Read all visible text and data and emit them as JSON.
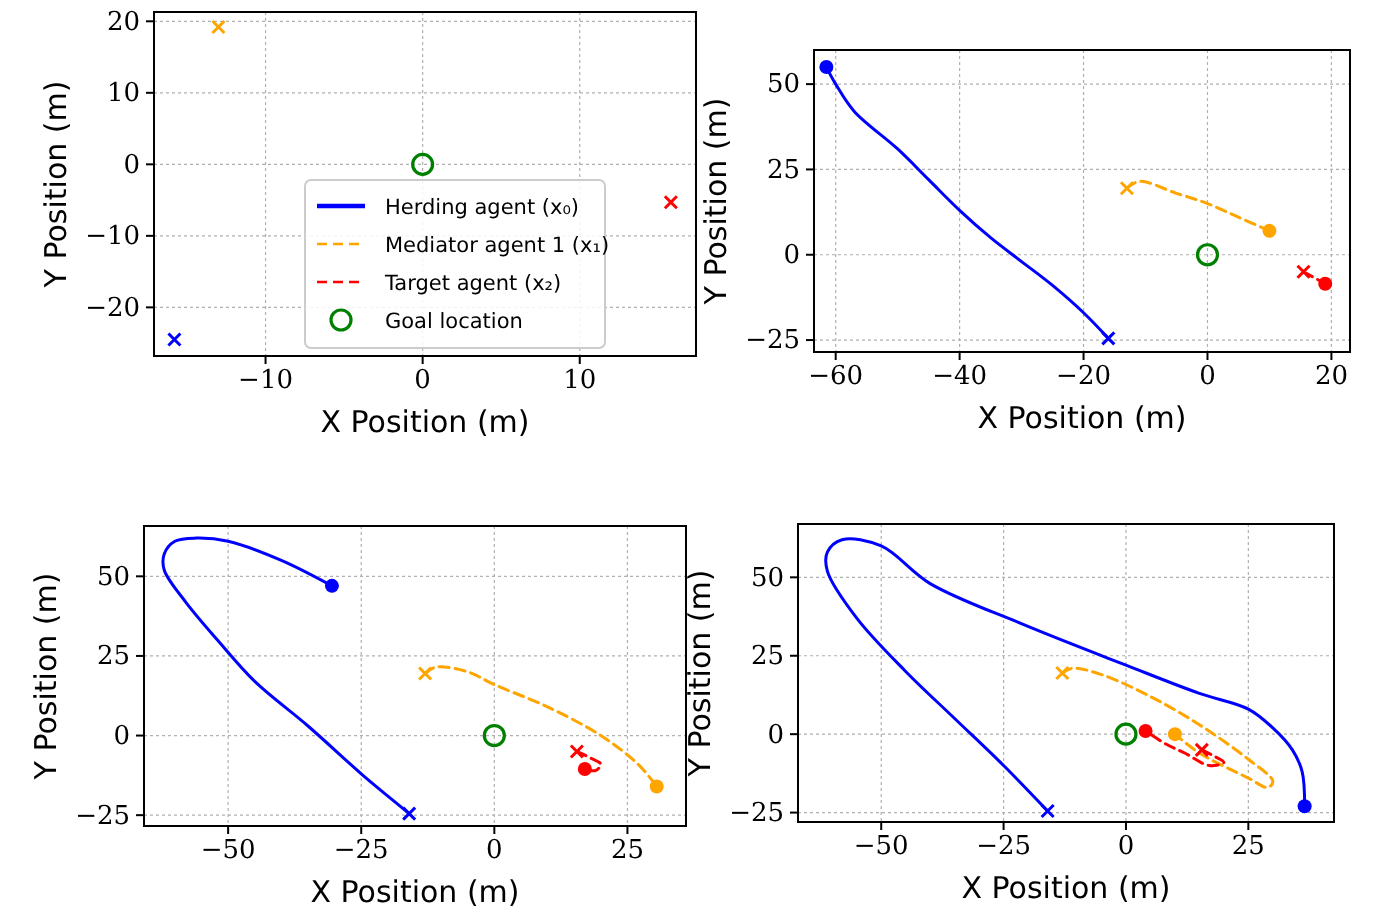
{
  "chart_data": [
    {
      "type": "line",
      "xlabel": "X Position (m)",
      "ylabel": "Y Position (m)",
      "xlim": [
        -17.1,
        17.4
      ],
      "ylim": [
        -26.8,
        21.3
      ],
      "xticks": [
        -10,
        0,
        10
      ],
      "yticks": [
        -20,
        -10,
        0,
        10,
        20
      ],
      "grid": true,
      "legend": "bottom",
      "series": [
        {
          "name": "Herding agent (x₀)",
          "type": "line",
          "color": "#0000ff",
          "line_style": "solid"
        },
        {
          "name": "Mediator agent 1 (x₁)",
          "type": "line",
          "color": "#ffa500",
          "line_style": "dashed"
        },
        {
          "name": "Target agent (x₂)",
          "type": "line",
          "color": "#ff0000",
          "line_style": "dashed"
        },
        {
          "type": "scatter",
          "marker": "cross",
          "colors": [
            "#0000ff",
            "#ffa500",
            "#ff0000"
          ],
          "x": [
            -15.8,
            -13,
            15.8
          ],
          "values": [
            -24.5,
            19.2,
            -5.3
          ]
        },
        {
          "name": "Goal location",
          "type": "scatter",
          "marker": "circle",
          "color": "#008000",
          "x": [
            0
          ],
          "values": [
            0
          ]
        }
      ]
    },
    {
      "type": "line",
      "xlabel": "X Position (m)",
      "ylabel": "Y Position (m)",
      "xlim": [
        -63.5,
        23
      ],
      "ylim": [
        -28.5,
        60
      ],
      "xticks": [
        -60,
        -40,
        -20,
        0,
        20
      ],
      "yticks": [
        -25,
        0,
        25,
        50
      ],
      "grid": true,
      "series": [
        {
          "type": "line",
          "color": "#0000ff",
          "line_style": "solid",
          "x": [
            -16,
            -20,
            -25,
            -30,
            -35,
            -40,
            -45,
            -50,
            -57,
            -60,
            -61.5
          ],
          "values": [
            -24.5,
            -17,
            -9,
            -2,
            5,
            13,
            22,
            31,
            42,
            50,
            55
          ]
        },
        {
          "type": "line",
          "color": "#ffa500",
          "line_style": "dashed",
          "x": [
            -13,
            -11,
            -5,
            0,
            5,
            10
          ],
          "values": [
            19.5,
            21.5,
            18,
            15,
            11,
            7
          ]
        },
        {
          "type": "line",
          "color": "#ff0000",
          "line_style": "dashed",
          "x": [
            15.5,
            19
          ],
          "values": [
            -5,
            -8.5
          ]
        },
        {
          "type": "scatter",
          "marker": "cross",
          "colors": [
            "#0000ff",
            "#ffa500",
            "#ff0000"
          ],
          "x": [
            -16,
            -13,
            15.5
          ],
          "values": [
            -24.5,
            19.5,
            -5
          ]
        },
        {
          "type": "scatter",
          "marker": "circle",
          "colors": [
            "#0000ff",
            "#ffa500",
            "#ff0000"
          ],
          "x": [
            -61.5,
            10,
            19
          ],
          "values": [
            55,
            7,
            -8.5
          ]
        },
        {
          "type": "scatter",
          "marker": "circle",
          "color": "#008000",
          "x": [
            0
          ],
          "values": [
            0
          ]
        }
      ]
    },
    {
      "type": "line",
      "xlabel": "X Position (m)",
      "ylabel": "Y Position (m)",
      "xlim": [
        -65.8,
        36
      ],
      "ylim": [
        -28.4,
        65.8
      ],
      "xticks": [
        -50,
        -25,
        0,
        25
      ],
      "yticks": [
        -25,
        0,
        25,
        50
      ],
      "grid": true,
      "series": [
        {
          "type": "line",
          "color": "#0000ff",
          "line_style": "solid",
          "x": [
            -16,
            -20,
            -25,
            -35,
            -45,
            -52,
            -58,
            -62,
            -62,
            -60,
            -56,
            -50,
            -40,
            -30.5
          ],
          "values": [
            -24.5,
            -19,
            -12,
            3,
            17,
            30,
            42,
            52,
            57,
            61,
            62,
            61,
            55,
            47
          ]
        },
        {
          "type": "line",
          "color": "#ffa500",
          "line_style": "dashed",
          "x": [
            -13,
            -11,
            -5,
            0,
            10,
            20,
            27,
            30.5
          ],
          "values": [
            19.5,
            21.5,
            20,
            16,
            9,
            0,
            -9,
            -16
          ]
        },
        {
          "type": "line",
          "color": "#ff0000",
          "line_style": "dashed",
          "x": [
            15.5,
            18,
            20,
            19,
            17
          ],
          "values": [
            -5,
            -7,
            -9,
            -11,
            -10.5
          ]
        },
        {
          "type": "scatter",
          "marker": "cross",
          "colors": [
            "#0000ff",
            "#ffa500",
            "#ff0000"
          ],
          "x": [
            -16,
            -13,
            15.5
          ],
          "values": [
            -24.5,
            19.5,
            -5
          ]
        },
        {
          "type": "scatter",
          "marker": "circle",
          "colors": [
            "#0000ff",
            "#ffa500",
            "#ff0000"
          ],
          "x": [
            -30.5,
            30.5,
            17
          ],
          "values": [
            47,
            -16,
            -10.5
          ]
        },
        {
          "type": "scatter",
          "marker": "circle",
          "color": "#008000",
          "x": [
            0
          ],
          "values": [
            0
          ]
        }
      ]
    },
    {
      "type": "line",
      "xlabel": "X Position (m)",
      "ylabel": "Y Position (m)",
      "xlim": [
        -67,
        42.5
      ],
      "ylim": [
        -28,
        67
      ],
      "xticks": [
        -50,
        -25,
        0,
        25
      ],
      "yticks": [
        -25,
        0,
        25,
        50
      ],
      "grid": true,
      "series": [
        {
          "type": "line",
          "color": "#0000ff",
          "line_style": "solid",
          "x": [
            -16,
            -25,
            -35,
            -45,
            -55,
            -61,
            -61,
            -58,
            -50,
            -40,
            -21,
            0,
            15,
            25,
            30,
            34,
            36,
            36.5
          ],
          "values": [
            -24.5,
            -10,
            5,
            20,
            37,
            52,
            58,
            62,
            60,
            48,
            35,
            22,
            13,
            8,
            2,
            -5,
            -12,
            -23
          ]
        },
        {
          "type": "line",
          "color": "#ffa500",
          "line_style": "dashed",
          "x": [
            -13,
            -11,
            -5,
            5,
            15,
            25,
            30,
            29,
            25,
            15,
            10
          ],
          "values": [
            19.5,
            21,
            19,
            12,
            3,
            -8,
            -15,
            -17,
            -14,
            -6,
            0
          ]
        },
        {
          "type": "line",
          "color": "#ff0000",
          "line_style": "dashed",
          "x": [
            15.5,
            18,
            20,
            17,
            12,
            8,
            4
          ],
          "values": [
            -5,
            -7,
            -9,
            -10,
            -6,
            -3,
            1
          ]
        },
        {
          "type": "scatter",
          "marker": "cross",
          "colors": [
            "#0000ff",
            "#ffa500",
            "#ff0000"
          ],
          "x": [
            -16,
            -13,
            15.5
          ],
          "values": [
            -24.5,
            19.5,
            -5
          ]
        },
        {
          "type": "scatter",
          "marker": "circle",
          "colors": [
            "#0000ff",
            "#ffa500",
            "#ff0000"
          ],
          "x": [
            36.5,
            10,
            4
          ],
          "values": [
            -23,
            0,
            1
          ]
        },
        {
          "type": "scatter",
          "marker": "circle",
          "color": "#008000",
          "x": [
            0
          ],
          "values": [
            0
          ]
        }
      ]
    }
  ]
}
